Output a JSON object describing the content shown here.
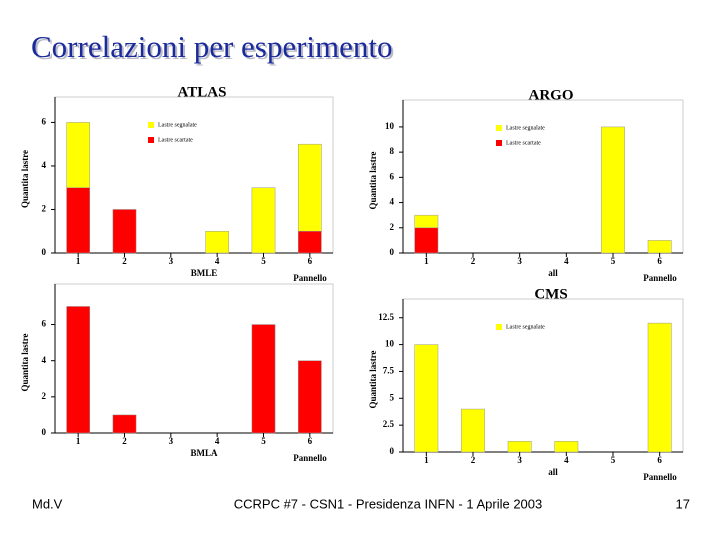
{
  "title": "Correlazioni per esperimento",
  "footer": {
    "left": "Md.V",
    "center": "CCRPC #7 - CSN1 - Presidenza INFN - 1 Aprile 2003",
    "right": "17"
  },
  "chart_data": [
    {
      "type": "bar",
      "title": "ATLAS",
      "stacked": true,
      "categories": [
        "1",
        "2",
        "3",
        "4",
        "5",
        "6"
      ],
      "series": [
        {
          "name": "Lastre segnalate",
          "color": "#ffff00",
          "values": [
            3,
            0,
            0,
            1,
            3,
            4
          ]
        },
        {
          "name": "Lastre scartate",
          "color": "#ff0000",
          "values": [
            3,
            2,
            0,
            0,
            0,
            1
          ]
        }
      ],
      "ylim": [
        0,
        6.8
      ],
      "yticks": [
        0,
        2,
        4,
        6
      ],
      "ylabel": "Quantita lastre",
      "xlabel": "Pannello",
      "annotation": "BMLE"
    },
    {
      "type": "bar",
      "title": "ARGO",
      "stacked": true,
      "categories": [
        "1",
        "2",
        "3",
        "4",
        "5",
        "6"
      ],
      "series": [
        {
          "name": "Lastre segnalate",
          "color": "#ffff00",
          "values": [
            1,
            0,
            0,
            0,
            10,
            1
          ]
        },
        {
          "name": "Lastre scartate",
          "color": "#ff0000",
          "values": [
            2,
            0,
            0,
            0,
            0,
            0
          ]
        }
      ],
      "ylim": [
        0,
        11.5
      ],
      "yticks": [
        0,
        2,
        4,
        6,
        8,
        10
      ],
      "ylabel": "Quantita lastre",
      "xlabel": "Pannello",
      "annotation": "all"
    },
    {
      "type": "bar",
      "categories": [
        "1",
        "2",
        "3",
        "4",
        "5",
        "6"
      ],
      "color": "#ff0000",
      "values": [
        7,
        1,
        0,
        0,
        6,
        4
      ],
      "ylim": [
        0,
        7.8
      ],
      "yticks": [
        0,
        2,
        4,
        6
      ],
      "ylabel": "Quantita lastre",
      "xlabel": "Pannello",
      "annotation": "BMLA"
    },
    {
      "type": "bar",
      "title": "CMS",
      "stacked": true,
      "categories": [
        "1",
        "2",
        "3",
        "4",
        "5",
        "6"
      ],
      "series": [
        {
          "name": "Lastre segnalate",
          "color": "#ffff00",
          "values": [
            10,
            4,
            1,
            1,
            0,
            12
          ]
        }
      ],
      "ylim": [
        0,
        13.5
      ],
      "yticks": [
        0,
        2.5,
        5,
        7.5,
        10,
        12.5
      ],
      "ylabel": "Quantita lastre",
      "xlabel": "Pannello",
      "annotation": "all"
    }
  ]
}
